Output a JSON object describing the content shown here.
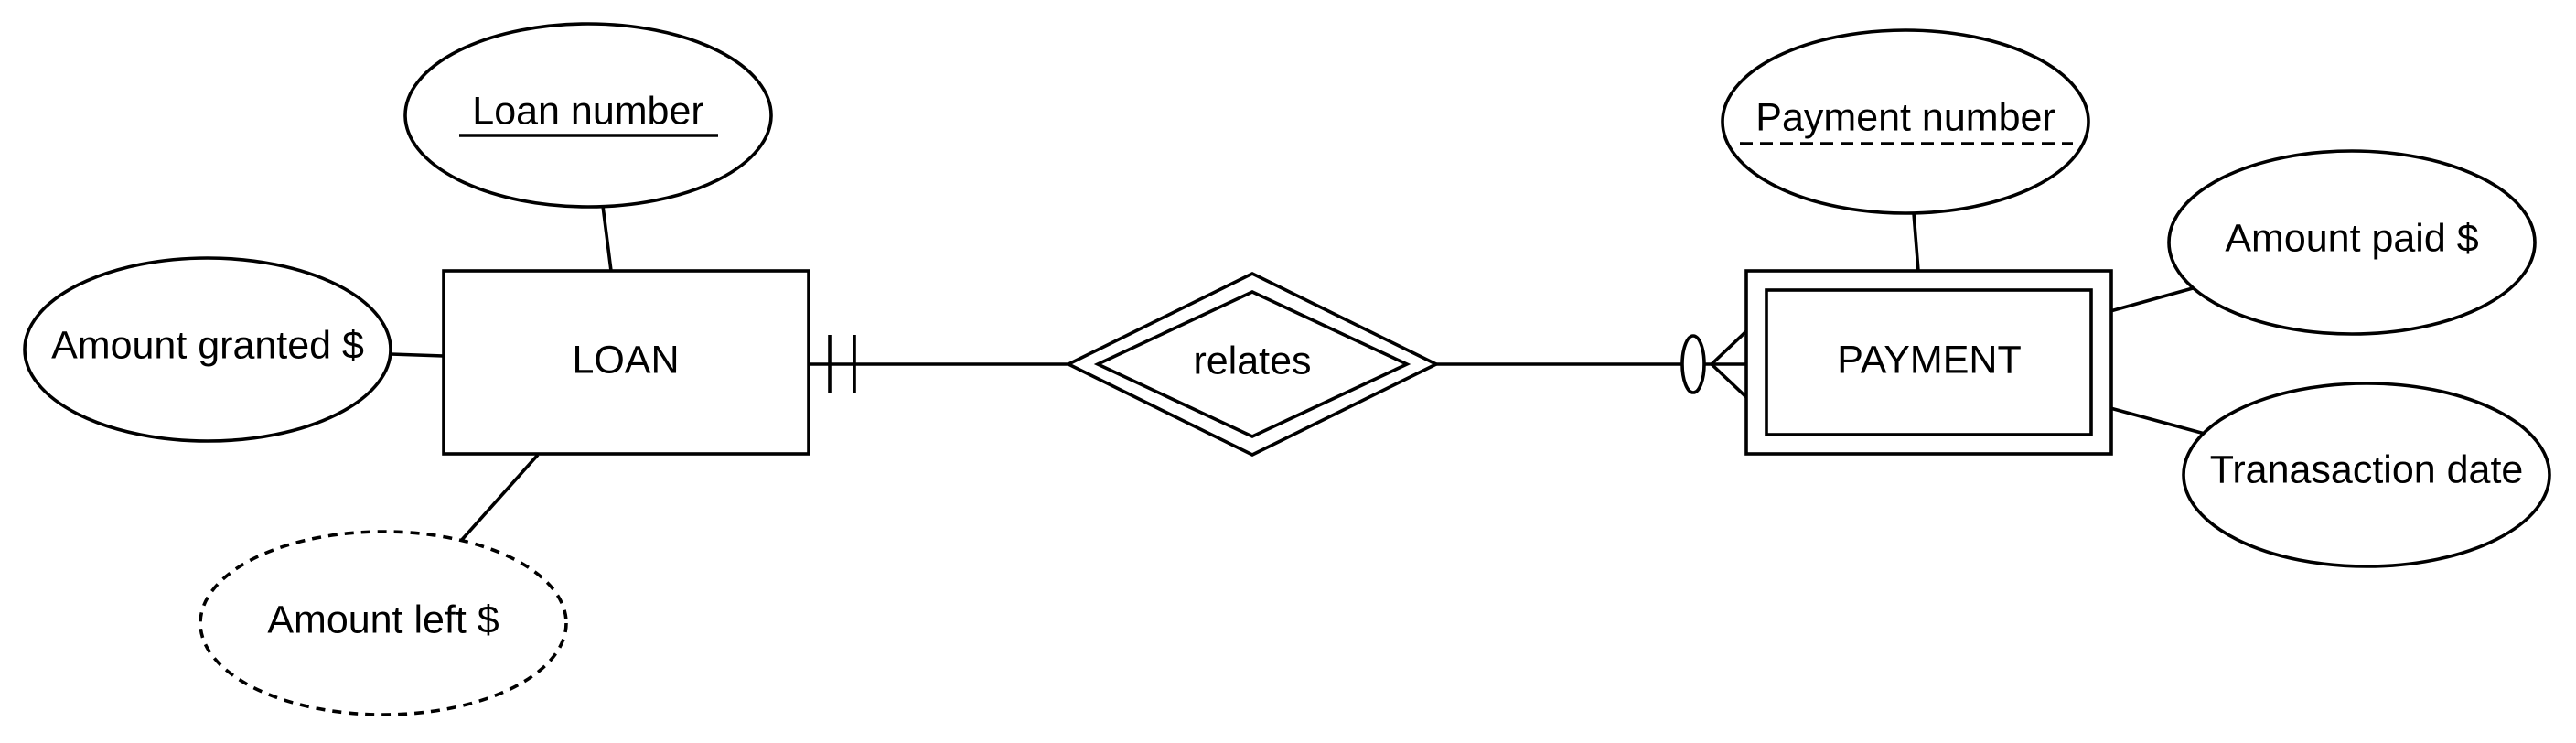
{
  "diagram": {
    "entities": {
      "loan": {
        "label": "LOAN",
        "kind": "strong entity"
      },
      "payment": {
        "label": "PAYMENT",
        "kind": "weak entity"
      }
    },
    "relationship": {
      "label": "relates",
      "kind": "identifying relationship"
    },
    "attributes": {
      "loan_number": {
        "label": "Loan number",
        "entity": "LOAN",
        "kind": "key attribute"
      },
      "amount_granted": {
        "label": "Amount granted $",
        "entity": "LOAN",
        "kind": "attribute"
      },
      "amount_left": {
        "label": "Amount left $",
        "entity": "LOAN",
        "kind": "derived attribute"
      },
      "payment_number": {
        "label": "Payment number",
        "entity": "PAYMENT",
        "kind": "partial key attribute"
      },
      "amount_paid": {
        "label": "Amount paid $",
        "entity": "PAYMENT",
        "kind": "attribute"
      },
      "transaction_date": {
        "label": "Tranasaction date",
        "entity": "PAYMENT",
        "kind": "attribute"
      }
    },
    "cardinality": {
      "loan_side": "exactly one",
      "payment_side": "zero or many"
    }
  }
}
